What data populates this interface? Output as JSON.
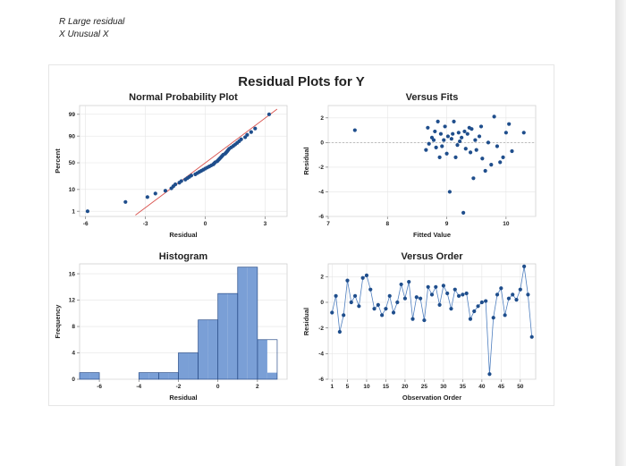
{
  "notes": {
    "line1": "R  Large residual",
    "line2": "X  Unusual X"
  },
  "figure_title": "Residual Plots for Y",
  "colors": {
    "point": "#1f4e8c",
    "fitline": "#d9534f",
    "bar": "#7a9fd6",
    "bar_edge": "#2c4f8a",
    "grid": "#e5e5e5"
  },
  "chart_data": [
    {
      "type": "scatter",
      "title": "Normal Probability Plot",
      "xlabel": "Residual",
      "ylabel": "Percent",
      "xlim": [
        -6.3,
        4.1
      ],
      "x_ticks": [
        "-6",
        "-3",
        "0",
        "3"
      ],
      "y_ticks": [
        "1",
        "10",
        "50",
        "90",
        "99"
      ],
      "y_scale": "normal-probability",
      "grid": true,
      "fit_line": {
        "x": [
          -3.5,
          3.6
        ],
        "percent": [
          0.6,
          99.5
        ]
      },
      "x": [
        -5.9,
        -4.0,
        -2.9,
        -2.5,
        -2.0,
        -1.7,
        -1.6,
        -1.5,
        -1.3,
        -1.2,
        -1.0,
        -0.9,
        -0.8,
        -0.7,
        -0.5,
        -0.4,
        -0.3,
        -0.2,
        -0.1,
        0.0,
        0.1,
        0.2,
        0.3,
        0.4,
        0.45,
        0.5,
        0.6,
        0.65,
        0.7,
        0.75,
        0.8,
        0.85,
        0.9,
        1.0,
        1.05,
        1.1,
        1.15,
        1.2,
        1.3,
        1.4,
        1.5,
        1.6,
        1.7,
        1.8,
        2.0,
        2.1,
        2.3,
        2.5,
        3.2
      ],
      "percent": [
        1.0,
        3.0,
        5.0,
        7.0,
        9.0,
        11.0,
        13.0,
        15.0,
        17.0,
        19.0,
        21.0,
        23.0,
        25.0,
        27.0,
        29.0,
        31.0,
        33.0,
        35.0,
        37.0,
        39.0,
        41.0,
        43.0,
        45.0,
        47.0,
        49.0,
        51.0,
        53.0,
        55.0,
        57.0,
        59.0,
        61.0,
        63.0,
        65.0,
        67.0,
        69.0,
        71.0,
        73.0,
        75.0,
        77.0,
        79.0,
        81.0,
        83.0,
        85.0,
        87.0,
        89.0,
        91.0,
        93.0,
        95.0,
        99.0
      ]
    },
    {
      "type": "scatter",
      "title": "Versus Fits",
      "xlabel": "Fitted Value",
      "ylabel": "Residual",
      "xlim": [
        7,
        10.5
      ],
      "ylim": [
        -6,
        3
      ],
      "x_ticks": [
        "7",
        "8",
        "9",
        "10"
      ],
      "y_ticks": [
        "-6",
        "-4",
        "-2",
        "0",
        "2"
      ],
      "reference_line": 0,
      "grid": true,
      "x": [
        7.45,
        8.65,
        8.68,
        8.7,
        8.75,
        8.78,
        8.8,
        8.82,
        8.85,
        8.88,
        8.9,
        8.92,
        8.95,
        8.97,
        9.0,
        9.02,
        9.05,
        9.08,
        9.1,
        9.12,
        9.15,
        9.18,
        9.2,
        9.22,
        9.25,
        9.28,
        9.3,
        9.32,
        9.35,
        9.38,
        9.4,
        9.42,
        9.45,
        9.48,
        9.5,
        9.55,
        9.58,
        9.6,
        9.65,
        9.7,
        9.75,
        9.8,
        9.85,
        9.9,
        9.95,
        10.0,
        10.05,
        10.1,
        10.3
      ],
      "y": [
        1.0,
        -0.6,
        1.2,
        -0.1,
        0.4,
        0.2,
        0.9,
        -0.4,
        1.7,
        -1.2,
        0.7,
        -0.3,
        0.2,
        1.3,
        -0.9,
        0.5,
        -4.0,
        0.3,
        0.7,
        1.7,
        -1.2,
        -0.2,
        0.8,
        0.1,
        0.4,
        -5.7,
        0.9,
        -0.5,
        0.7,
        1.2,
        -0.8,
        1.1,
        -2.9,
        0.2,
        -0.6,
        0.5,
        1.3,
        -1.3,
        -2.3,
        0.0,
        -1.8,
        2.1,
        -0.3,
        -1.6,
        -1.2,
        0.8,
        1.5,
        -0.7,
        0.8
      ]
    },
    {
      "type": "bar",
      "title": "Histogram",
      "xlabel": "Residual",
      "ylabel": "Frequency",
      "xlim": [
        -7,
        3.5
      ],
      "ylim": [
        0,
        17.5
      ],
      "x_ticks": [
        "-6",
        "-4",
        "-2",
        "0",
        "2"
      ],
      "y_ticks": [
        "0",
        "4",
        "8",
        "12",
        "16"
      ],
      "bin_edges": [
        -7,
        -6.5,
        -6,
        -5.5,
        -5,
        -4.5,
        -4,
        -3.5,
        -3,
        -2.5,
        -2,
        -1.5,
        -1,
        -0.5,
        0,
        0.5,
        1,
        1.5,
        2,
        2.5,
        3
      ],
      "values": [
        1,
        1,
        0,
        0,
        0,
        0,
        1,
        1,
        1,
        1,
        4,
        4,
        9,
        9,
        13,
        13,
        17,
        17,
        6,
        1
      ]
    },
    {
      "type": "line",
      "title": "Versus Order",
      "xlabel": "Observation Order",
      "ylabel": "Residual",
      "xlim": [
        0,
        54
      ],
      "ylim": [
        -6,
        3
      ],
      "x_ticks": [
        "1",
        "5",
        "10",
        "15",
        "20",
        "25",
        "30",
        "35",
        "40",
        "45",
        "50"
      ],
      "y_ticks": [
        "-6",
        "-4",
        "-2",
        "0",
        "2"
      ],
      "markers": true,
      "x": [
        1,
        2,
        3,
        4,
        5,
        6,
        7,
        8,
        9,
        10,
        11,
        12,
        13,
        14,
        15,
        16,
        17,
        18,
        19,
        20,
        21,
        22,
        23,
        24,
        25,
        26,
        27,
        28,
        29,
        30,
        31,
        32,
        33,
        34,
        35,
        36,
        37,
        38,
        39,
        40,
        41,
        42,
        43,
        44,
        45,
        46,
        47,
        48,
        49,
        50,
        51,
        52,
        53
      ],
      "y": [
        -0.8,
        0.5,
        -2.3,
        -1.0,
        1.7,
        0.0,
        0.5,
        -0.3,
        1.9,
        2.1,
        1.0,
        -0.5,
        -0.2,
        -1.0,
        -0.5,
        0.5,
        -0.8,
        0.0,
        1.4,
        0.3,
        1.6,
        -1.3,
        0.4,
        0.3,
        -1.4,
        1.2,
        0.6,
        1.2,
        -0.2,
        1.3,
        0.7,
        -0.5,
        1.0,
        0.5,
        0.6,
        0.7,
        -1.3,
        -0.7,
        -0.3,
        0.0,
        0.1,
        -5.6,
        -1.2,
        0.6,
        1.1,
        -1.0,
        0.3,
        0.6,
        0.2,
        1.0,
        2.8,
        0.6,
        -2.7
      ]
    }
  ]
}
